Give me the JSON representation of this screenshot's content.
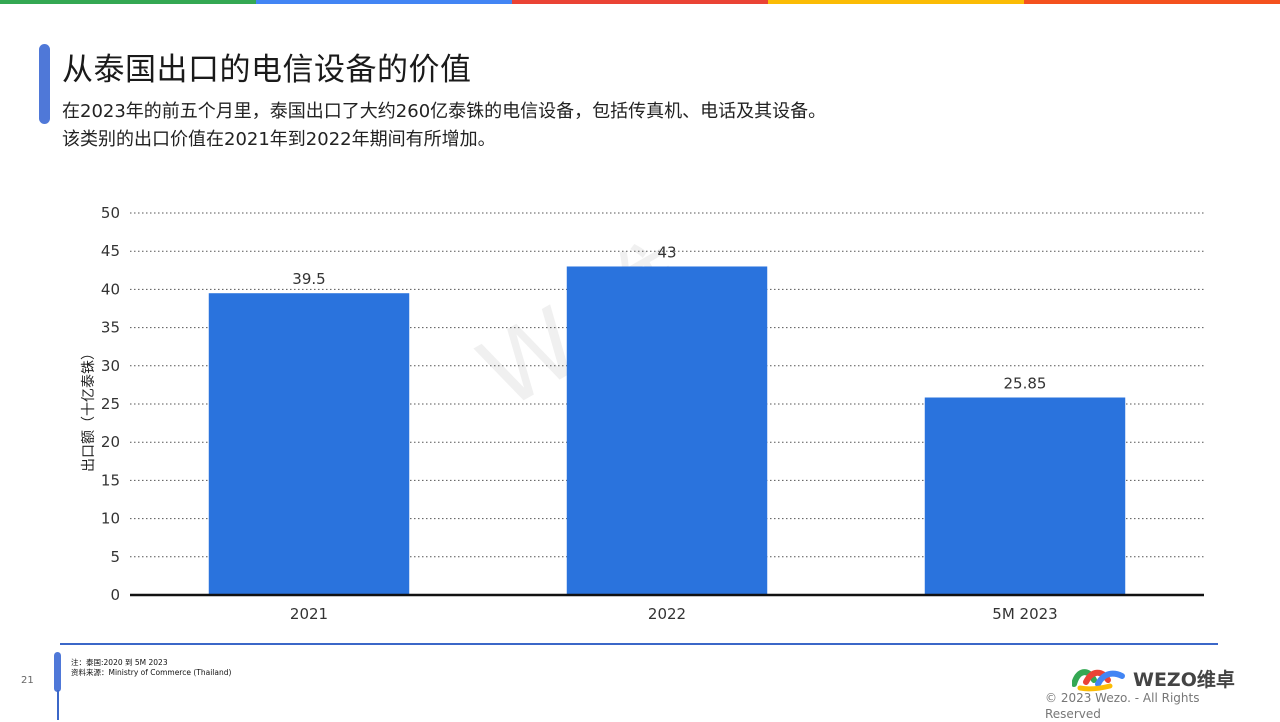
{
  "header": {
    "colors": [
      "#34a853",
      "#4285f4",
      "#ea4335",
      "#fbbc05",
      "#f4511e"
    ],
    "title": "从泰国出口的电信设备的价值",
    "subtitle_line1": "在2023年的前五个月里，泰国出口了大约260亿泰铢的电信设备，包括传真机、电话及其设备。",
    "subtitle_line2": "该类别的出口价值在2021年到2022年期间有所增加。"
  },
  "chart_data": {
    "type": "bar",
    "categories": [
      "2021",
      "2022",
      "5M 2023"
    ],
    "values": [
      39.5,
      43,
      25.85
    ],
    "data_labels": [
      "39.5",
      "43",
      "25.85"
    ],
    "title": "",
    "xlabel": "",
    "ylabel": "出口额（十亿泰铢）",
    "ylim": [
      0,
      50
    ],
    "yticks": [
      0,
      5,
      10,
      15,
      20,
      25,
      30,
      35,
      40,
      45,
      50
    ],
    "grid": true,
    "bar_color": "#2a73dd"
  },
  "watermark": "W 维",
  "footer": {
    "page_number": "21",
    "note": "注：泰国:2020 到 5M 2023",
    "source": "资料来源：Ministry of Commerce (Thailand)",
    "logo_text": "WEZO维卓",
    "copyright": "© 2023 Wezo. - All Rights Reserved"
  }
}
